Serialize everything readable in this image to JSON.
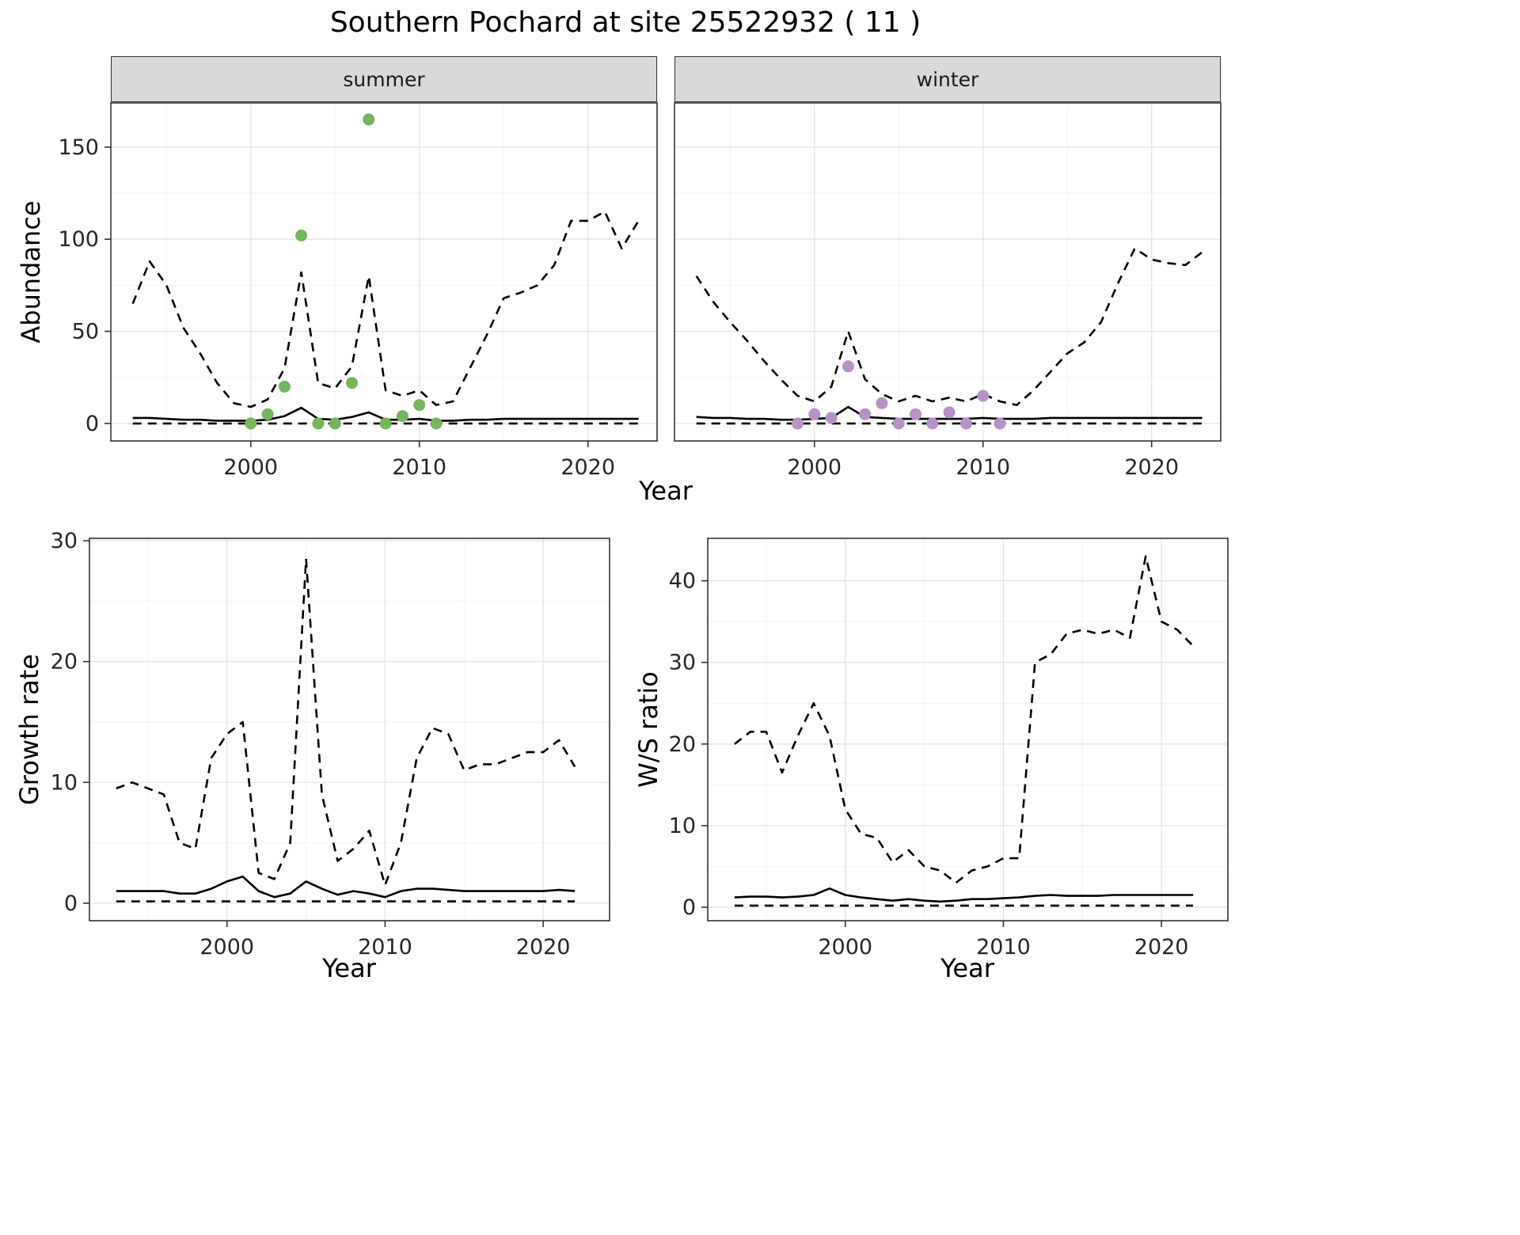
{
  "title": "Southern Pochard at site 25522932 ( 11 )",
  "labels": {
    "facet_summer": "summer",
    "facet_winter": "winter",
    "abundance": "Abundance",
    "growth_rate": "Growth rate",
    "ws_ratio": "W/S ratio",
    "year_top": "Year",
    "year_growth": "Year",
    "year_ws": "Year"
  },
  "colors": {
    "summer_points": "#75b55d",
    "winter_points": "#b692c7",
    "line": "#000000",
    "strip_bg": "#d9d9d9",
    "grid_major": "#e4e4e4",
    "grid_minor": "#f2f2f2",
    "panel_border": "#333333",
    "tick_text": "#262626"
  },
  "chart_data": [
    {
      "id": "abundance-summer",
      "type": "line",
      "facet_label": "summer",
      "title": "Southern Pochard at site 25522932 ( 11 )",
      "xlabel": "Year",
      "ylabel": "Abundance",
      "xlim": [
        1991.7,
        2024.1
      ],
      "ylim": [
        -9.5,
        174
      ],
      "xticks": [
        2000,
        2010,
        2020
      ],
      "xticks_minor": [
        1995,
        2005,
        2015
      ],
      "yticks": [
        0,
        50,
        100,
        150
      ],
      "yticks_minor": [
        25,
        75,
        125
      ],
      "show_y_ticks": true,
      "grid": true,
      "x": [
        1993,
        1994,
        1995,
        1996,
        1997,
        1998,
        1999,
        2000,
        2001,
        2002,
        2003,
        2004,
        2005,
        2006,
        2007,
        2008,
        2009,
        2010,
        2011,
        2012,
        2013,
        2014,
        2015,
        2016,
        2017,
        2018,
        2019,
        2020,
        2021,
        2022,
        2023
      ],
      "series": [
        {
          "name": "upper-ci",
          "style": "dashed",
          "values": [
            65,
            88,
            75,
            52,
            38,
            22,
            11,
            9,
            13,
            30,
            82,
            22,
            19,
            31,
            80,
            18,
            15,
            18,
            10,
            12,
            30,
            48,
            68,
            71,
            75,
            86,
            110,
            110,
            115,
            95,
            110
          ]
        },
        {
          "name": "median",
          "style": "solid",
          "values": [
            3,
            3,
            2.5,
            2,
            2,
            1.5,
            1.5,
            1.5,
            2,
            4,
            8.5,
            2.5,
            2,
            3.5,
            6,
            2,
            2,
            2.5,
            1.5,
            1.5,
            2,
            2,
            2.5,
            2.5,
            2.5,
            2.5,
            2.5,
            2.5,
            2.5,
            2.5,
            2.5
          ]
        },
        {
          "name": "lower-ci",
          "style": "dashed",
          "values": [
            0,
            0,
            0,
            0,
            0,
            0,
            0,
            0,
            0,
            0,
            0,
            0,
            0,
            0,
            0,
            0,
            0,
            0,
            0,
            0,
            0,
            0,
            0,
            0,
            0,
            0,
            0,
            0,
            0,
            0,
            0
          ]
        }
      ],
      "points": {
        "name": "observed-summer",
        "color_key": "summer_points",
        "x": [
          2000,
          2001,
          2002,
          2003,
          2004,
          2005,
          2006,
          2007,
          2008,
          2009,
          2010,
          2011
        ],
        "y": [
          0,
          5,
          20,
          102,
          0,
          0,
          22,
          165,
          0,
          4,
          10,
          0
        ]
      }
    },
    {
      "id": "abundance-winter",
      "type": "line",
      "facet_label": "winter",
      "xlabel": "Year",
      "ylabel": "Abundance",
      "xlim": [
        1991.7,
        2024.1
      ],
      "ylim": [
        -9.5,
        174
      ],
      "xticks": [
        2000,
        2010,
        2020
      ],
      "xticks_minor": [
        1995,
        2005,
        2015
      ],
      "yticks": [
        0,
        50,
        100,
        150
      ],
      "yticks_minor": [
        25,
        75,
        125
      ],
      "show_y_ticks": false,
      "grid": true,
      "x": [
        1993,
        1994,
        1995,
        1996,
        1997,
        1998,
        1999,
        2000,
        2001,
        2002,
        2003,
        2004,
        2005,
        2006,
        2007,
        2008,
        2009,
        2010,
        2011,
        2012,
        2013,
        2014,
        2015,
        2016,
        2017,
        2018,
        2019,
        2020,
        2021,
        2022,
        2023
      ],
      "series": [
        {
          "name": "upper-ci",
          "style": "dashed",
          "values": [
            80,
            66,
            55,
            45,
            34,
            24,
            15,
            12,
            20,
            50,
            24,
            16,
            12,
            15,
            12,
            14,
            12,
            16,
            12,
            10,
            18,
            28,
            38,
            44,
            55,
            76,
            95,
            89,
            87,
            86,
            93
          ]
        },
        {
          "name": "median",
          "style": "solid",
          "values": [
            3.5,
            3,
            3,
            2.5,
            2.5,
            2,
            2,
            2.5,
            3,
            9,
            3.5,
            3,
            2.5,
            2.5,
            2.5,
            2.5,
            2.5,
            3,
            2.5,
            2.5,
            2.5,
            3,
            3,
            3,
            3,
            3,
            3,
            3,
            3,
            3,
            3
          ]
        },
        {
          "name": "lower-ci",
          "style": "dashed",
          "values": [
            0,
            0,
            0,
            0,
            0,
            0,
            0,
            0,
            0,
            0,
            0,
            0,
            0,
            0,
            0,
            0,
            0,
            0,
            0,
            0,
            0,
            0,
            0,
            0,
            0,
            0,
            0,
            0,
            0,
            0,
            0
          ]
        }
      ],
      "points": {
        "name": "observed-winter",
        "color_key": "winter_points",
        "x": [
          1999,
          2000,
          2001,
          2002,
          2003,
          2004,
          2005,
          2006,
          2007,
          2008,
          2009,
          2010,
          2011
        ],
        "y": [
          0,
          5,
          3,
          31,
          5,
          11,
          0,
          5,
          0,
          6,
          0,
          15,
          0
        ]
      }
    },
    {
      "id": "growth-rate",
      "type": "line",
      "xlabel": "Year",
      "ylabel": "Growth rate",
      "xlim": [
        1991.3,
        2024.2
      ],
      "ylim": [
        -1.45,
        30.2
      ],
      "xticks": [
        2000,
        2010,
        2020
      ],
      "xticks_minor": [
        1995,
        2005,
        2015
      ],
      "yticks": [
        0,
        10,
        20,
        30
      ],
      "yticks_minor": [
        5,
        15,
        25
      ],
      "show_y_ticks": true,
      "grid": true,
      "x": [
        1993,
        1994,
        1995,
        1996,
        1997,
        1998,
        1999,
        2000,
        2001,
        2002,
        2003,
        2004,
        2005,
        2006,
        2007,
        2008,
        2009,
        2010,
        2011,
        2012,
        2013,
        2014,
        2015,
        2016,
        2017,
        2018,
        2019,
        2020,
        2021,
        2022
      ],
      "series": [
        {
          "name": "upper-ci",
          "style": "dashed",
          "values": [
            9.5,
            10,
            9.5,
            9,
            5,
            4.5,
            12,
            14,
            15,
            2.5,
            2,
            5,
            28.5,
            9,
            3.5,
            4.5,
            6,
            1.5,
            5,
            12,
            14.5,
            14,
            11,
            11.5,
            11.5,
            12,
            12.5,
            12.5,
            13.5,
            11.3
          ]
        },
        {
          "name": "median",
          "style": "solid",
          "values": [
            1,
            1,
            1,
            1,
            0.8,
            0.8,
            1.2,
            1.8,
            2.2,
            1,
            0.5,
            0.8,
            1.8,
            1.2,
            0.7,
            1,
            0.8,
            0.5,
            1,
            1.2,
            1.2,
            1.1,
            1,
            1,
            1,
            1,
            1,
            1,
            1.1,
            1
          ]
        },
        {
          "name": "lower-ci",
          "style": "dashed",
          "values": [
            0.15,
            0.15,
            0.15,
            0.15,
            0.15,
            0.15,
            0.15,
            0.15,
            0.15,
            0.15,
            0.15,
            0.15,
            0.15,
            0.15,
            0.15,
            0.15,
            0.15,
            0.15,
            0.15,
            0.15,
            0.15,
            0.15,
            0.15,
            0.15,
            0.15,
            0.15,
            0.15,
            0.15,
            0.15,
            0.15
          ]
        }
      ]
    },
    {
      "id": "ws-ratio",
      "type": "line",
      "xlabel": "Year",
      "ylabel": "W/S ratio",
      "xlim": [
        1991.3,
        2024.2
      ],
      "ylim": [
        -1.65,
        45.2
      ],
      "xticks": [
        2000,
        2010,
        2020
      ],
      "xticks_minor": [
        1995,
        2005,
        2015
      ],
      "yticks": [
        0,
        10,
        20,
        30,
        40
      ],
      "yticks_minor": [
        5,
        15,
        25,
        35
      ],
      "show_y_ticks": true,
      "grid": true,
      "x": [
        1993,
        1994,
        1995,
        1996,
        1997,
        1998,
        1999,
        2000,
        2001,
        2002,
        2003,
        2004,
        2005,
        2006,
        2007,
        2008,
        2009,
        2010,
        2011,
        2012,
        2013,
        2014,
        2015,
        2016,
        2017,
        2018,
        2019,
        2020,
        2021,
        2022
      ],
      "series": [
        {
          "name": "upper-ci",
          "style": "dashed",
          "values": [
            20,
            21.5,
            21.5,
            16.5,
            21,
            25,
            21,
            12,
            9,
            8.5,
            5.5,
            7,
            5,
            4.5,
            3,
            4.5,
            5,
            6,
            6,
            30,
            31,
            33.5,
            34,
            33.5,
            34,
            33,
            43,
            35,
            34,
            32
          ]
        },
        {
          "name": "median",
          "style": "solid",
          "values": [
            1.2,
            1.3,
            1.3,
            1.2,
            1.3,
            1.5,
            2.3,
            1.5,
            1.2,
            1,
            0.8,
            1,
            0.8,
            0.7,
            0.8,
            1,
            1,
            1.1,
            1.2,
            1.4,
            1.5,
            1.4,
            1.4,
            1.4,
            1.5,
            1.5,
            1.5,
            1.5,
            1.5,
            1.5
          ]
        },
        {
          "name": "lower-ci",
          "style": "dashed",
          "values": [
            0.2,
            0.2,
            0.2,
            0.2,
            0.2,
            0.2,
            0.2,
            0.2,
            0.2,
            0.2,
            0.2,
            0.2,
            0.2,
            0.2,
            0.2,
            0.2,
            0.2,
            0.2,
            0.2,
            0.2,
            0.2,
            0.2,
            0.2,
            0.2,
            0.2,
            0.2,
            0.2,
            0.2,
            0.2,
            0.2
          ]
        }
      ]
    }
  ]
}
